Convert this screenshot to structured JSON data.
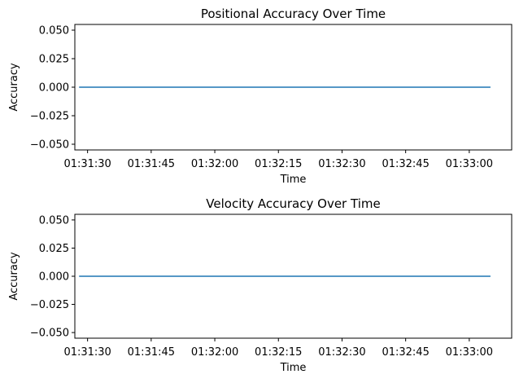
{
  "chart_data": [
    {
      "type": "line",
      "title": "Positional Accuracy Over Time",
      "xlabel": "Time",
      "ylabel": "Accuracy",
      "x_axis_type": "time",
      "xlim": [
        "01:31:27",
        "01:33:10"
      ],
      "ylim": [
        -0.055,
        0.055
      ],
      "x_ticks": [
        "01:31:30",
        "01:31:45",
        "01:32:00",
        "01:32:15",
        "01:32:30",
        "01:32:45",
        "01:33:00"
      ],
      "y_ticks": [
        0.05,
        0.025,
        0.0,
        -0.025,
        -0.05
      ],
      "y_tick_labels": [
        "0.050",
        "0.025",
        "0.000",
        "−0.025",
        "−0.050"
      ],
      "grid": false,
      "series": [
        {
          "color": "#1f77b4",
          "x": [
            "01:31:28",
            "01:33:05"
          ],
          "y": [
            0.0,
            0.0
          ]
        }
      ]
    },
    {
      "type": "line",
      "title": "Velocity Accuracy Over Time",
      "xlabel": "Time",
      "ylabel": "Accuracy",
      "x_axis_type": "time",
      "xlim": [
        "01:31:27",
        "01:33:10"
      ],
      "ylim": [
        -0.055,
        0.055
      ],
      "x_ticks": [
        "01:31:30",
        "01:31:45",
        "01:32:00",
        "01:32:15",
        "01:32:30",
        "01:32:45",
        "01:33:00"
      ],
      "y_ticks": [
        0.05,
        0.025,
        0.0,
        -0.025,
        -0.05
      ],
      "y_tick_labels": [
        "0.050",
        "0.025",
        "0.000",
        "−0.025",
        "−0.050"
      ],
      "grid": false,
      "series": [
        {
          "color": "#1f77b4",
          "x": [
            "01:31:28",
            "01:33:05"
          ],
          "y": [
            0.0,
            0.0
          ]
        }
      ]
    }
  ]
}
